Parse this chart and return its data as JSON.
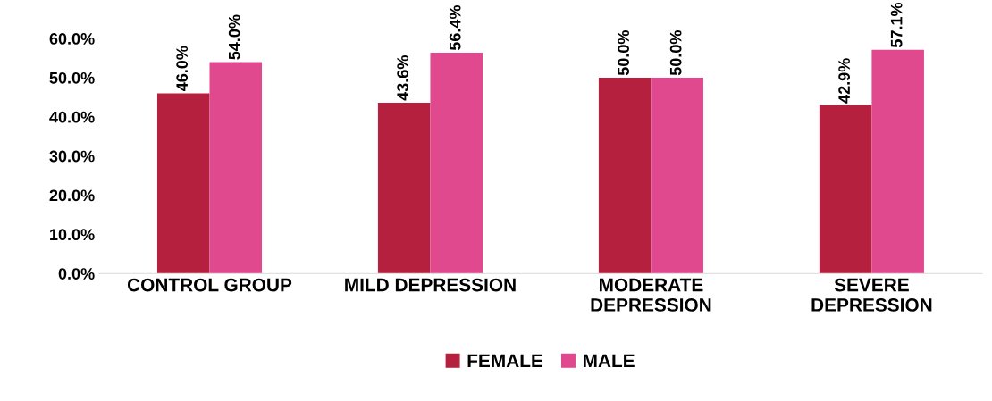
{
  "chart_data": {
    "type": "bar",
    "categories": [
      "CONTROL GROUP",
      "MILD DEPRESSION",
      "MODERATE\nDEPRESSION",
      "SEVERE\nDEPRESSION"
    ],
    "series": [
      {
        "name": "FEMALE",
        "color": "#b5203f",
        "values": [
          46.0,
          43.6,
          50.0,
          42.9
        ],
        "value_labels": [
          "46.0%",
          "43.6%",
          "50.0%",
          "42.9%"
        ]
      },
      {
        "name": "MALE",
        "color": "#e0498e",
        "values": [
          54.0,
          56.4,
          50.0,
          57.1
        ],
        "value_labels": [
          "54.0%",
          "56.4%",
          "50.0%",
          "57.1%"
        ]
      }
    ],
    "ylim": [
      0,
      60
    ],
    "yticks": [
      {
        "value": 0,
        "label": "0.0%"
      },
      {
        "value": 10,
        "label": "10.0%"
      },
      {
        "value": 20,
        "label": "20.0%"
      },
      {
        "value": 30,
        "label": "30.0%"
      },
      {
        "value": 40,
        "label": "40.0%"
      },
      {
        "value": 50,
        "label": "50.0%"
      },
      {
        "value": 60,
        "label": "60.0%"
      }
    ],
    "grid": false,
    "legend": "bottom"
  }
}
